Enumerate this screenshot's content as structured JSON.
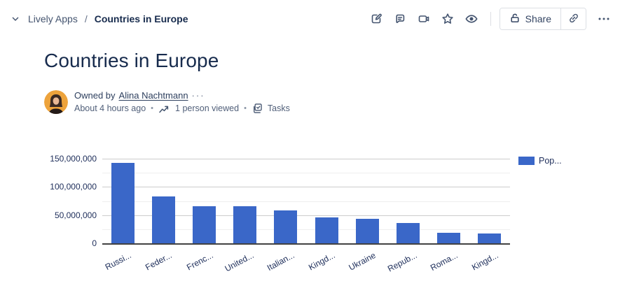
{
  "header": {
    "breadcrumb": {
      "parent": "Lively Apps",
      "separator": "/",
      "current": "Countries in Europe"
    },
    "toolbar": {
      "share_label": "Share"
    },
    "icons": {
      "breadcrumb_chevron": "chevron-down",
      "actions": [
        "edit",
        "comment",
        "video",
        "star",
        "watch-eye"
      ],
      "share_lock": "unlock",
      "share_link": "link",
      "more": "ellipsis"
    }
  },
  "page": {
    "title": "Countries in Europe",
    "byline": {
      "owned_by_prefix": "Owned by",
      "owner": "Alina Nachtmann",
      "owner_more": "···",
      "updated": "About 4 hours ago",
      "dot": "•",
      "viewed": "1 person viewed",
      "tasks_label": "Tasks",
      "icons": {
        "viewed": "trend-up",
        "tasks": "checkbox-check"
      }
    }
  },
  "chart_data": {
    "type": "bar",
    "title": "",
    "xlabel": "",
    "ylabel": "",
    "categories": [
      "Russi...",
      "Feder...",
      "Frenc...",
      "United...",
      "Italian...",
      "Kingd...",
      "Ukraine",
      "Repub...",
      "Roma...",
      "Kingd..."
    ],
    "series": [
      {
        "name": "Pop...",
        "values": [
          143000000,
          82500000,
          66000000,
          66000000,
          58800000,
          46400000,
          43900000,
          36500000,
          19000000,
          17000000
        ]
      }
    ],
    "ylim": [
      0,
      150000000
    ],
    "ytick_values": [
      0,
      50000000,
      100000000,
      150000000
    ],
    "ytick_labels": [
      "0",
      "50,000,000",
      "100,000,000",
      "150,000,000"
    ],
    "minor_grid_step": 25000000,
    "major_grid_step": 50000000,
    "grid": true,
    "legend_position": "right-top",
    "legend": [
      {
        "label": "Pop...",
        "color": "#3a67c8"
      }
    ],
    "bar_color": "#3a67c8",
    "label_color": "#20305c"
  }
}
